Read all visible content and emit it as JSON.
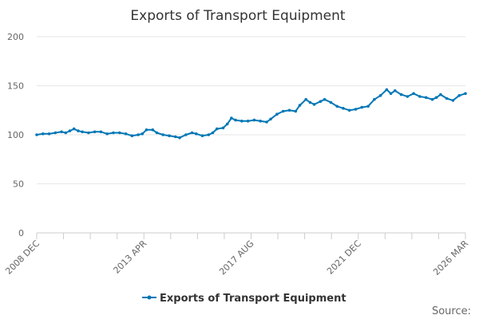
{
  "chart_data": {
    "type": "line",
    "title": "Exports of Transport Equipment",
    "xlabel": "",
    "ylabel": "",
    "ylim": [
      0,
      200
    ],
    "y_ticks": [
      0,
      50,
      100,
      150,
      200
    ],
    "x_tick_labels": [
      "2008 DEC",
      "2013 APR",
      "2017 AUG",
      "2021 DEC",
      "2026 MAR"
    ],
    "x_start": "2008-12",
    "x_end": "2026-03",
    "grid": true,
    "legend_position": "bottom",
    "series": [
      {
        "name": "Exports of Transport Equipment",
        "color": "#0077b6",
        "points": [
          [
            "2008-12",
            100
          ],
          [
            "2009-03",
            101
          ],
          [
            "2009-06",
            101
          ],
          [
            "2009-09",
            102
          ],
          [
            "2009-12",
            103
          ],
          [
            "2010-02",
            102
          ],
          [
            "2010-04",
            104
          ],
          [
            "2010-06",
            106
          ],
          [
            "2010-08",
            104
          ],
          [
            "2010-10",
            103
          ],
          [
            "2011-01",
            102
          ],
          [
            "2011-04",
            103
          ],
          [
            "2011-07",
            103
          ],
          [
            "2011-10",
            101
          ],
          [
            "2012-01",
            102
          ],
          [
            "2012-04",
            102
          ],
          [
            "2012-07",
            101
          ],
          [
            "2012-10",
            99
          ],
          [
            "2013-01",
            100
          ],
          [
            "2013-03",
            101
          ],
          [
            "2013-05",
            105
          ],
          [
            "2013-08",
            105
          ],
          [
            "2013-10",
            102
          ],
          [
            "2014-01",
            100
          ],
          [
            "2014-04",
            99
          ],
          [
            "2014-07",
            98
          ],
          [
            "2014-09",
            97
          ],
          [
            "2014-12",
            100
          ],
          [
            "2015-03",
            102
          ],
          [
            "2015-05",
            101
          ],
          [
            "2015-08",
            99
          ],
          [
            "2015-11",
            100
          ],
          [
            "2016-01",
            102
          ],
          [
            "2016-03",
            106
          ],
          [
            "2016-06",
            107
          ],
          [
            "2016-08",
            111
          ],
          [
            "2016-10",
            117
          ],
          [
            "2016-12",
            115
          ],
          [
            "2017-03",
            114
          ],
          [
            "2017-06",
            114
          ],
          [
            "2017-09",
            115
          ],
          [
            "2017-12",
            114
          ],
          [
            "2018-03",
            113
          ],
          [
            "2018-05",
            116
          ],
          [
            "2018-08",
            121
          ],
          [
            "2018-11",
            124
          ],
          [
            "2019-02",
            125
          ],
          [
            "2019-05",
            124
          ],
          [
            "2019-07",
            130
          ],
          [
            "2019-10",
            136
          ],
          [
            "2019-12",
            133
          ],
          [
            "2020-02",
            131
          ],
          [
            "2020-05",
            134
          ],
          [
            "2020-07",
            136
          ],
          [
            "2020-10",
            133
          ],
          [
            "2021-01",
            129
          ],
          [
            "2021-04",
            127
          ],
          [
            "2021-07",
            125
          ],
          [
            "2021-10",
            126
          ],
          [
            "2022-01",
            128
          ],
          [
            "2022-04",
            129
          ],
          [
            "2022-07",
            136
          ],
          [
            "2022-10",
            140
          ],
          [
            "2023-01",
            146
          ],
          [
            "2023-03",
            142
          ],
          [
            "2023-05",
            145
          ],
          [
            "2023-08",
            141
          ],
          [
            "2023-11",
            139
          ],
          [
            "2024-02",
            142
          ],
          [
            "2024-05",
            139
          ],
          [
            "2024-08",
            138
          ],
          [
            "2024-11",
            136
          ],
          [
            "2025-01",
            138
          ],
          [
            "2025-03",
            141
          ],
          [
            "2025-06",
            137
          ],
          [
            "2025-09",
            135
          ],
          [
            "2025-12",
            140
          ],
          [
            "2026-03",
            142
          ]
        ]
      }
    ]
  },
  "source_label": "Source:"
}
